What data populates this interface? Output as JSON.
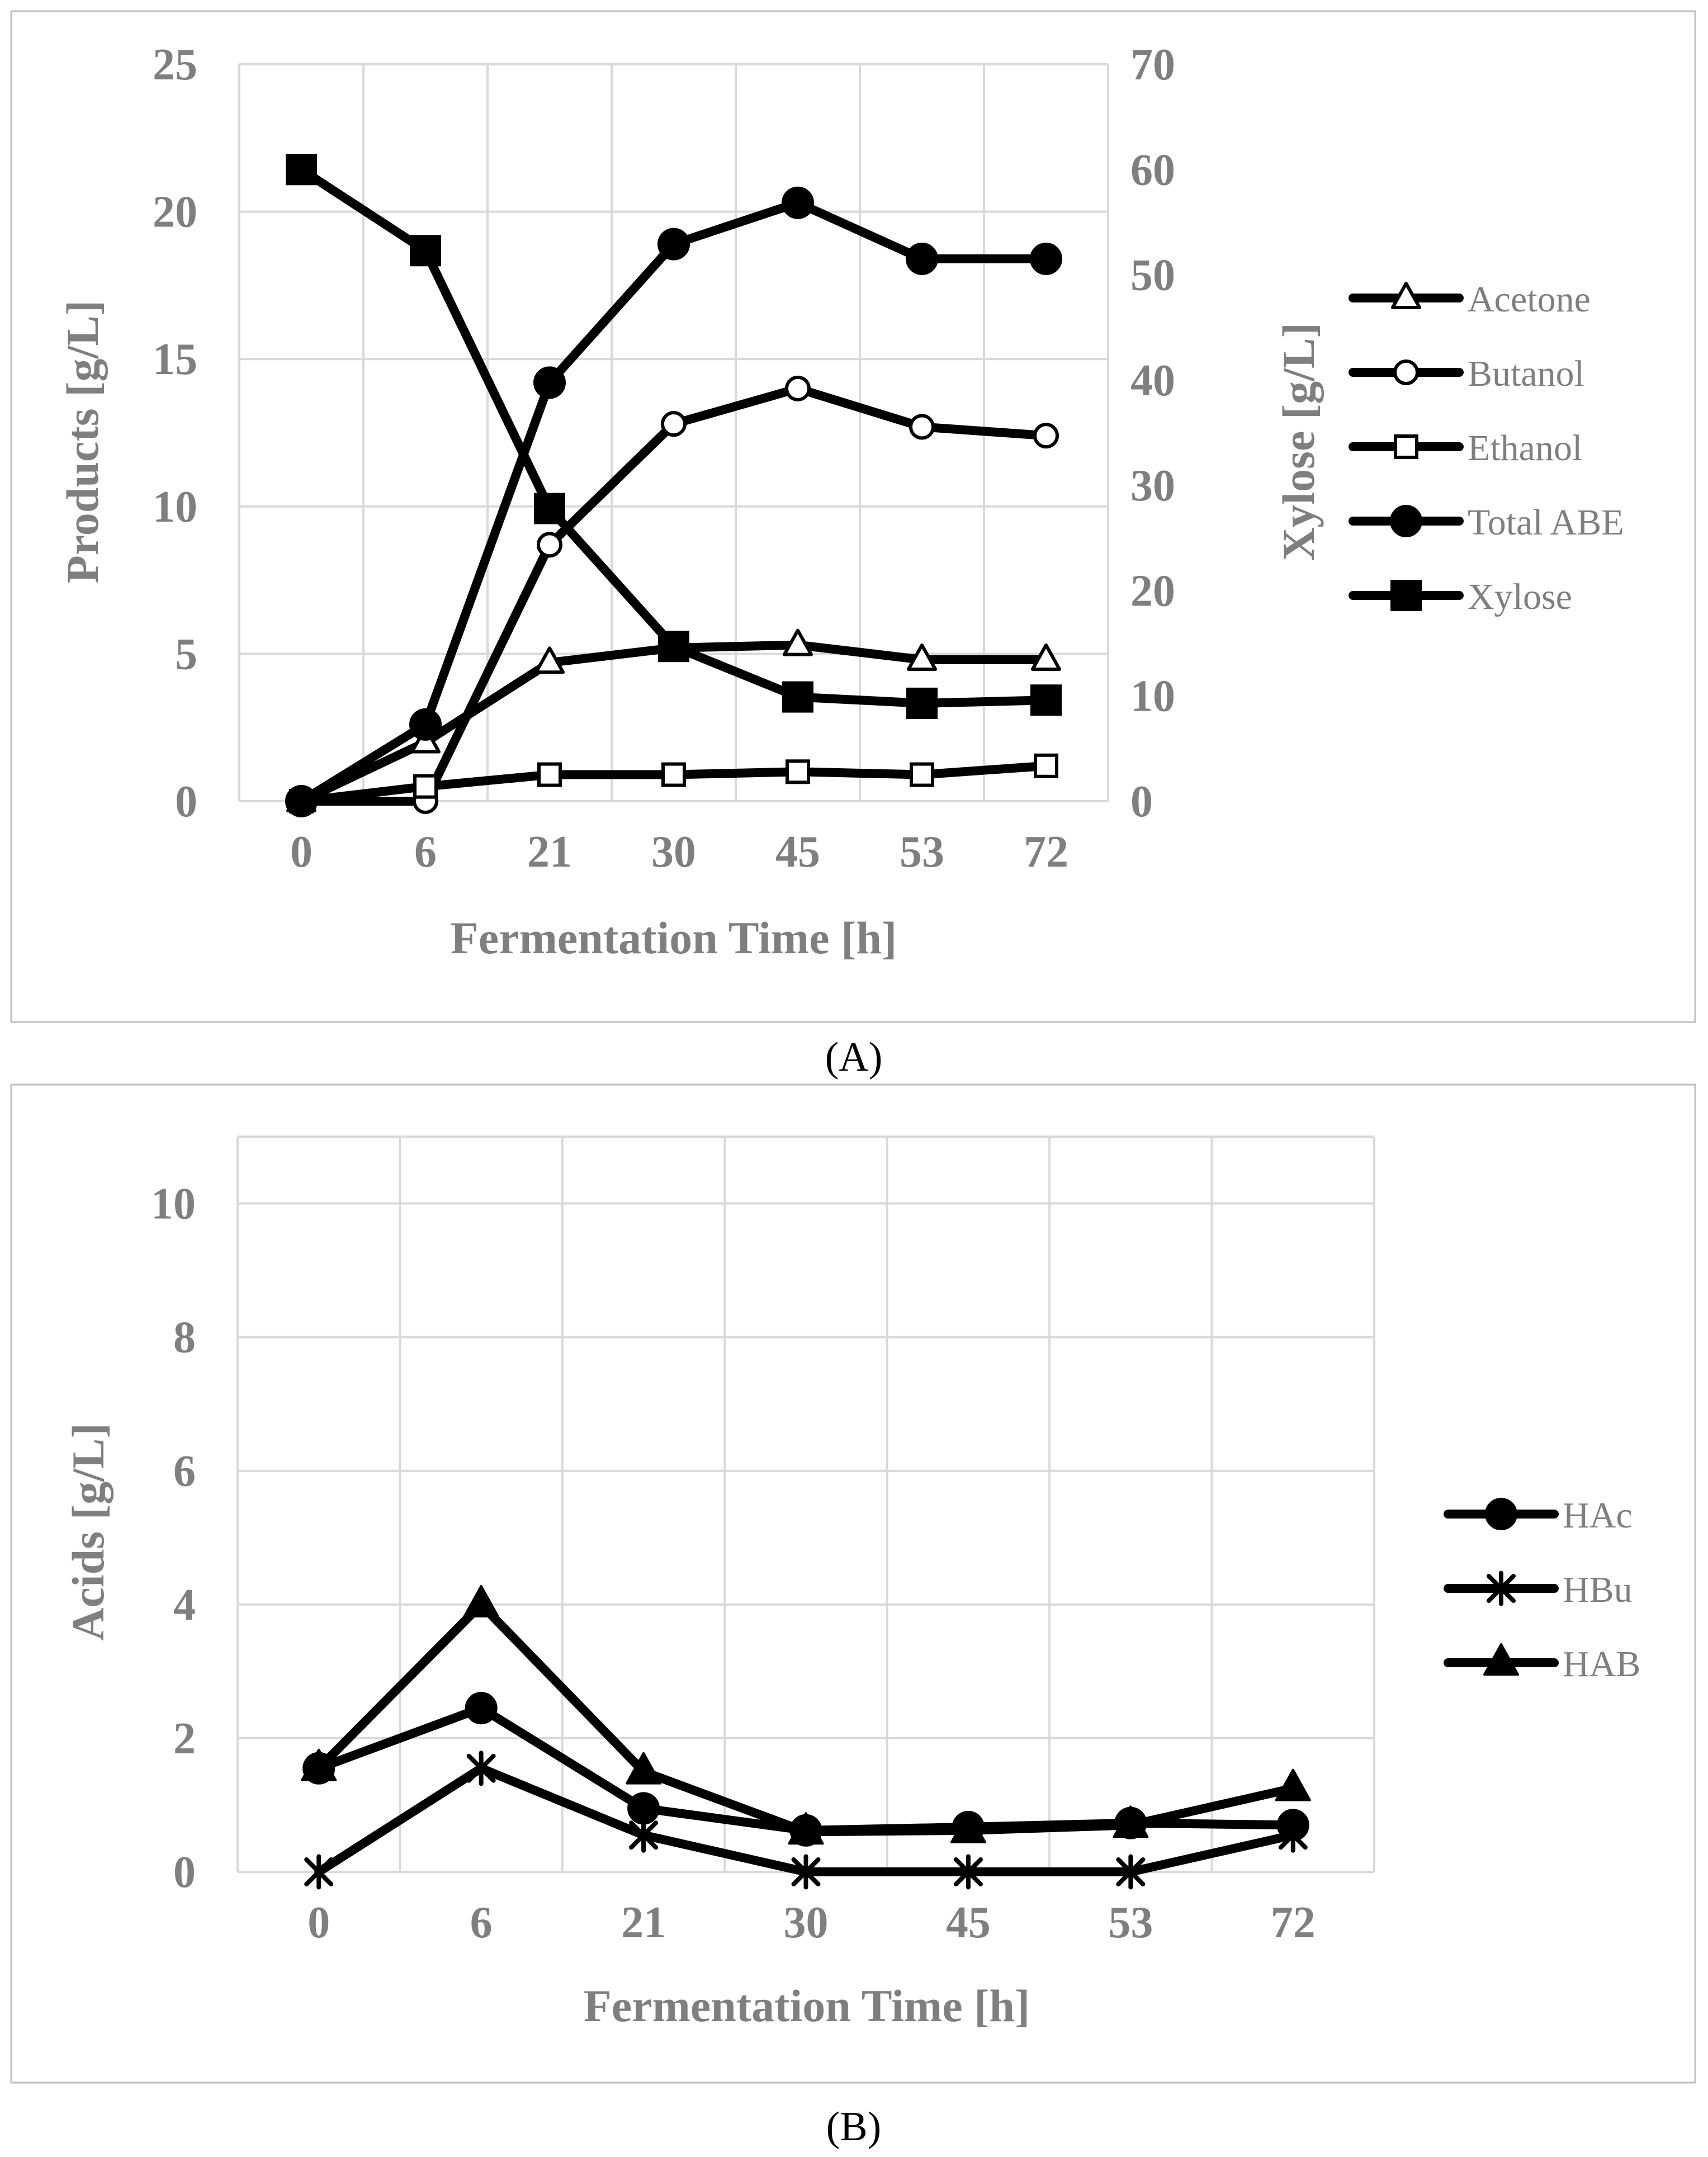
{
  "chart_data": [
    {
      "type": "line",
      "panel": "A",
      "caption": "(A)",
      "categories": [
        "0",
        "6",
        "21",
        "30",
        "45",
        "53",
        "72"
      ],
      "xlabel": "Fermentation Time [h]",
      "ylabel": "Products [g/L]",
      "y2label": "Xylose [g/L]",
      "ylim": [
        0,
        25
      ],
      "y2lim": [
        0,
        70
      ],
      "yticks": [
        "0",
        "5",
        "10",
        "15",
        "20",
        "25"
      ],
      "y2ticks": [
        "0",
        "10",
        "20",
        "30",
        "40",
        "50",
        "60",
        "70"
      ],
      "grid": true,
      "legend": "right",
      "series": [
        {
          "name": "Acetone",
          "axis": "left",
          "marker": "triangle-open",
          "values": [
            0,
            2.0,
            4.7,
            5.2,
            5.3,
            4.8,
            4.8
          ]
        },
        {
          "name": "Butanol",
          "axis": "left",
          "marker": "circle-open",
          "values": [
            0,
            0,
            8.7,
            12.8,
            14.0,
            12.7,
            12.4
          ]
        },
        {
          "name": "Ethanol",
          "axis": "left",
          "marker": "square-open",
          "values": [
            0,
            0.5,
            0.9,
            0.9,
            1.0,
            0.9,
            1.2
          ]
        },
        {
          "name": "Total ABE",
          "axis": "left",
          "marker": "circle-filled",
          "values": [
            0,
            2.6,
            14.2,
            18.9,
            20.3,
            18.4,
            18.4
          ]
        },
        {
          "name": "Xylose",
          "axis": "right",
          "marker": "square-filled",
          "values": [
            60.0,
            52.3,
            27.8,
            14.7,
            9.9,
            9.3,
            9.6
          ]
        }
      ]
    },
    {
      "type": "line",
      "panel": "B",
      "caption": "(B)",
      "categories": [
        "0",
        "6",
        "21",
        "30",
        "45",
        "53",
        "72"
      ],
      "xlabel": "Fermentation Time [h]",
      "ylabel": "Acids [g/L]",
      "ylim": [
        0,
        11
      ],
      "yticks": [
        "0",
        "2",
        "4",
        "6",
        "8",
        "10"
      ],
      "yticksValues": [
        0,
        2,
        4,
        6,
        8,
        10
      ],
      "grid": true,
      "legend": "right",
      "series": [
        {
          "name": "HAc",
          "marker": "circle-filled",
          "values": [
            1.55,
            2.45,
            0.95,
            0.62,
            0.67,
            0.73,
            0.7
          ]
        },
        {
          "name": "HBu",
          "marker": "star",
          "values": [
            0,
            1.55,
            0.55,
            0,
            0,
            0,
            0.55
          ]
        },
        {
          "name": "HAB",
          "marker": "triangle-filled",
          "values": [
            1.55,
            4.0,
            1.5,
            0.6,
            0.62,
            0.7,
            1.25
          ]
        }
      ]
    }
  ]
}
